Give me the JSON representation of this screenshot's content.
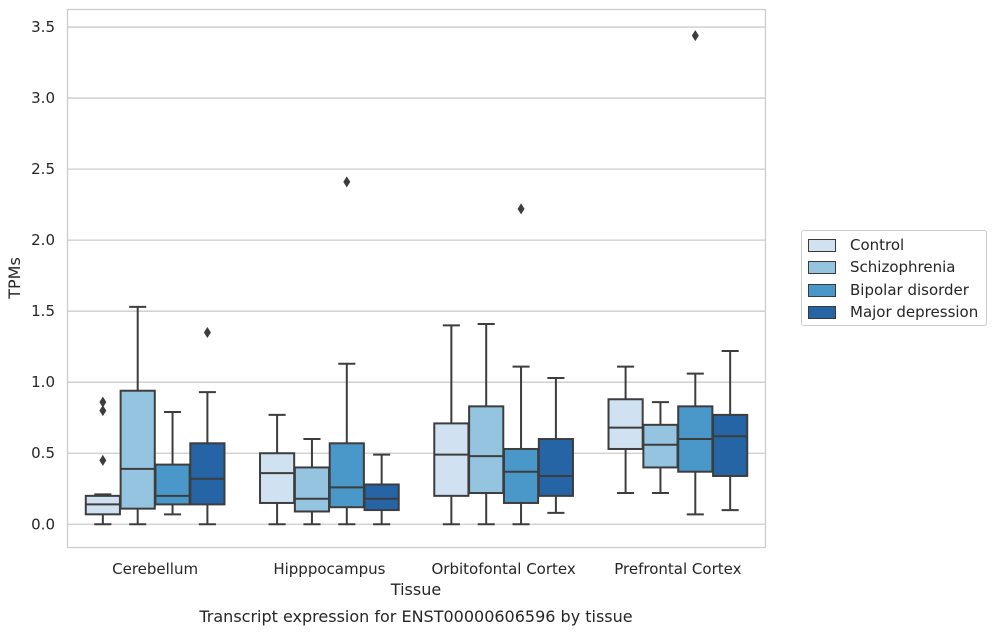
{
  "chart_data": {
    "type": "box",
    "title": "Transcript expression for ENST00000606596 by tissue",
    "xlabel": "Tissue",
    "ylabel": "TPMs",
    "ylim": [
      -0.16,
      3.62
    ],
    "yticks": [
      "0.0",
      "0.5",
      "1.0",
      "1.5",
      "2.0",
      "2.5",
      "3.0",
      "3.5"
    ],
    "grid": true,
    "legend_position": "right",
    "categories": [
      "Cerebellum",
      "Hipppocampus",
      "Orbitofontal Cortex",
      "Prefrontal Cortex"
    ],
    "series": [
      {
        "name": "Control",
        "color": "#d0e1f2",
        "boxes": [
          {
            "whisker_low": 0.0,
            "q1": 0.07,
            "median": 0.14,
            "q3": 0.2,
            "whisker_high": 0.21,
            "outliers": [
              0.45,
              0.8,
              0.86
            ]
          },
          {
            "whisker_low": 0.0,
            "q1": 0.15,
            "median": 0.36,
            "q3": 0.5,
            "whisker_high": 0.77,
            "outliers": []
          },
          {
            "whisker_low": 0.0,
            "q1": 0.2,
            "median": 0.49,
            "q3": 0.71,
            "whisker_high": 1.4,
            "outliers": []
          },
          {
            "whisker_low": 0.22,
            "q1": 0.53,
            "median": 0.68,
            "q3": 0.88,
            "whisker_high": 1.11,
            "outliers": []
          }
        ]
      },
      {
        "name": "Schizophrenia",
        "color": "#94c4df",
        "boxes": [
          {
            "whisker_low": 0.0,
            "q1": 0.11,
            "median": 0.39,
            "q3": 0.94,
            "whisker_high": 1.53,
            "outliers": []
          },
          {
            "whisker_low": 0.0,
            "q1": 0.09,
            "median": 0.18,
            "q3": 0.4,
            "whisker_high": 0.6,
            "outliers": []
          },
          {
            "whisker_low": 0.0,
            "q1": 0.22,
            "median": 0.48,
            "q3": 0.83,
            "whisker_high": 1.41,
            "outliers": []
          },
          {
            "whisker_low": 0.22,
            "q1": 0.4,
            "median": 0.56,
            "q3": 0.7,
            "whisker_high": 0.86,
            "outliers": []
          }
        ]
      },
      {
        "name": "Bipolar disorder",
        "color": "#4a98c9",
        "boxes": [
          {
            "whisker_low": 0.07,
            "q1": 0.14,
            "median": 0.2,
            "q3": 0.42,
            "whisker_high": 0.79,
            "outliers": []
          },
          {
            "whisker_low": 0.0,
            "q1": 0.12,
            "median": 0.26,
            "q3": 0.57,
            "whisker_high": 1.13,
            "outliers": [
              2.41
            ]
          },
          {
            "whisker_low": 0.0,
            "q1": 0.15,
            "median": 0.37,
            "q3": 0.53,
            "whisker_high": 1.11,
            "outliers": [
              2.22
            ]
          },
          {
            "whisker_low": 0.07,
            "q1": 0.37,
            "median": 0.6,
            "q3": 0.83,
            "whisker_high": 1.06,
            "outliers": [
              3.44
            ]
          }
        ]
      },
      {
        "name": "Major depression",
        "color": "#2565a6",
        "boxes": [
          {
            "whisker_low": 0.0,
            "q1": 0.14,
            "median": 0.32,
            "q3": 0.57,
            "whisker_high": 0.93,
            "outliers": [
              1.35
            ]
          },
          {
            "whisker_low": 0.0,
            "q1": 0.1,
            "median": 0.18,
            "q3": 0.28,
            "whisker_high": 0.49,
            "outliers": []
          },
          {
            "whisker_low": 0.08,
            "q1": 0.2,
            "median": 0.34,
            "q3": 0.6,
            "whisker_high": 1.03,
            "outliers": []
          },
          {
            "whisker_low": 0.1,
            "q1": 0.34,
            "median": 0.62,
            "q3": 0.77,
            "whisker_high": 1.22,
            "outliers": []
          }
        ]
      }
    ]
  }
}
